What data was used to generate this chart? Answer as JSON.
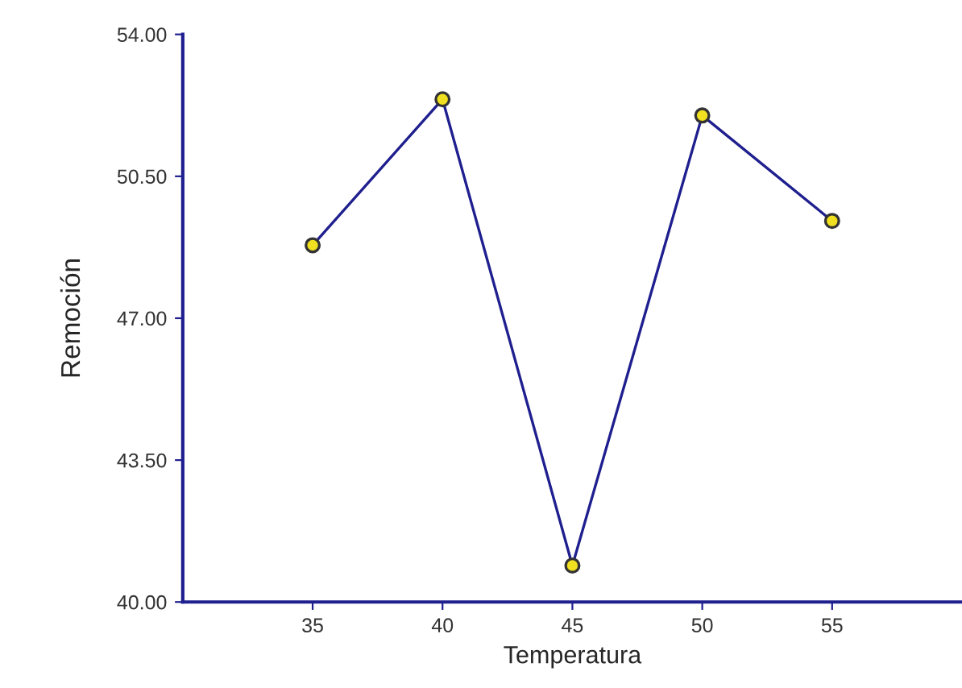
{
  "chart_data": {
    "type": "line",
    "xlabel": "Temperatura",
    "ylabel": "Remoción",
    "x": [
      35,
      40,
      45,
      50,
      55
    ],
    "series": [
      {
        "color": "#1f1f8f",
        "values": [
          48.8,
          52.4,
          40.9,
          52.0,
          49.4
        ]
      }
    ],
    "marker": "circle",
    "line_style": "solid",
    "grid": false,
    "legend": false,
    "xlim": [
      30,
      60
    ],
    "xticks": [
      35,
      40,
      45,
      50,
      55
    ],
    "ylim": [
      40,
      54
    ],
    "yticks": [
      {
        "value": 40,
        "label": "40.00"
      },
      {
        "value": 43.5,
        "label": "43.50"
      },
      {
        "value": 47,
        "label": "47.00"
      },
      {
        "value": 50.5,
        "label": "50.50"
      },
      {
        "value": 54,
        "label": "54.00"
      }
    ]
  }
}
